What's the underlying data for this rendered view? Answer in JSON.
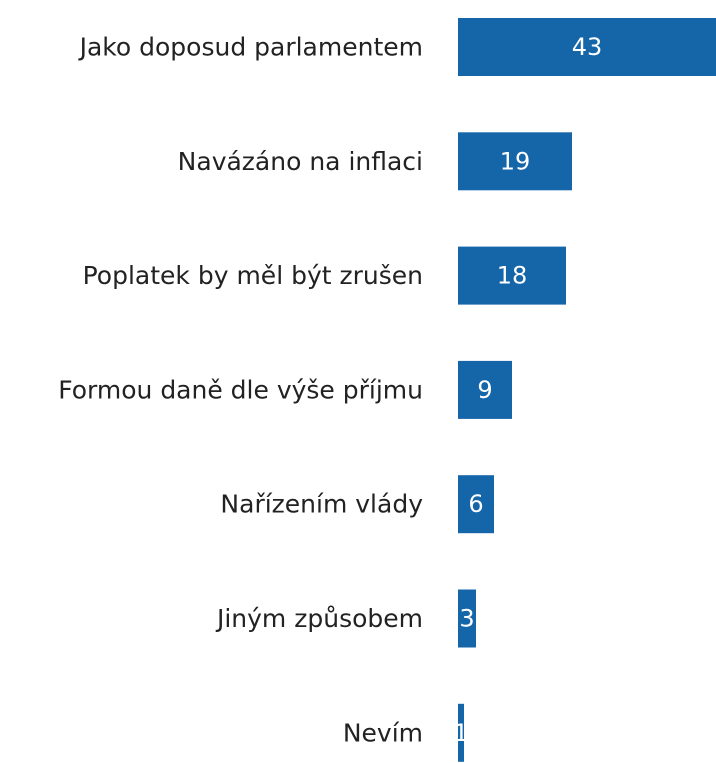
{
  "chart_data": {
    "type": "bar",
    "orientation": "horizontal",
    "categories": [
      "Jako doposud parlamentem",
      "Navázáno na inflaci",
      "Poplatek by měl být zrušen",
      "Formou daně dle výše příjmu",
      "Nařízením vlády",
      "Jiným způsobem",
      "Nevím"
    ],
    "values": [
      43,
      19,
      18,
      9,
      6,
      3,
      1
    ],
    "color": "#1565a9"
  }
}
